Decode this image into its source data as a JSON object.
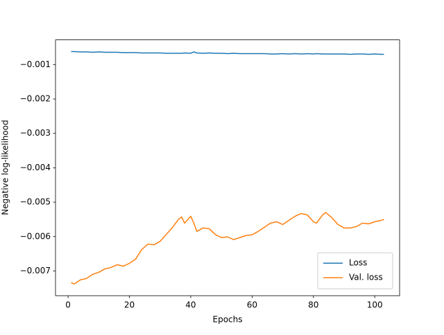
{
  "chart_data": {
    "type": "line",
    "xlabel": "Epochs",
    "ylabel": "Negative log-likelihood",
    "x": [
      1,
      2,
      4,
      6,
      8,
      10,
      12,
      14,
      16,
      18,
      20,
      22,
      24,
      26,
      28,
      30,
      32,
      34,
      36,
      37,
      38,
      40,
      41,
      42,
      44,
      46,
      48,
      50,
      52,
      54,
      56,
      58,
      60,
      62,
      64,
      66,
      68,
      70,
      72,
      74,
      76,
      78,
      80,
      81,
      83,
      84,
      86,
      88,
      90,
      92,
      94,
      96,
      98,
      100,
      102,
      103
    ],
    "series": [
      {
        "name": "Loss",
        "color": "#1f77b4",
        "values": [
          -0.00062,
          -0.00062,
          -0.00063,
          -0.00063,
          -0.00064,
          -0.00063,
          -0.00064,
          -0.00064,
          -0.00064,
          -0.00065,
          -0.00065,
          -0.00065,
          -0.00066,
          -0.00066,
          -0.00066,
          -0.00066,
          -0.00067,
          -0.00067,
          -0.00067,
          -0.00067,
          -0.00066,
          -0.00067,
          -0.00063,
          -0.00066,
          -0.00067,
          -0.00066,
          -0.00067,
          -0.00067,
          -0.00068,
          -0.00067,
          -0.00068,
          -0.00068,
          -0.00068,
          -0.00068,
          -0.00068,
          -0.00069,
          -0.00069,
          -0.00068,
          -0.00069,
          -0.00068,
          -0.00069,
          -0.00068,
          -0.00069,
          -0.00068,
          -0.00069,
          -0.00069,
          -0.00069,
          -0.00069,
          -0.00069,
          -0.0007,
          -0.00069,
          -0.00069,
          -0.0007,
          -0.00069,
          -0.0007,
          -0.0007
        ]
      },
      {
        "name": "Val. loss",
        "color": "#ff7f0e",
        "values": [
          -0.00734,
          -0.00738,
          -0.00726,
          -0.00722,
          -0.0071,
          -0.00704,
          -0.00694,
          -0.0069,
          -0.00682,
          -0.00686,
          -0.00678,
          -0.00666,
          -0.00638,
          -0.00622,
          -0.00624,
          -0.00614,
          -0.00594,
          -0.00574,
          -0.0055,
          -0.00543,
          -0.00561,
          -0.00541,
          -0.00561,
          -0.00585,
          -0.00575,
          -0.00577,
          -0.00594,
          -0.00603,
          -0.00601,
          -0.00609,
          -0.00603,
          -0.00597,
          -0.00595,
          -0.00585,
          -0.00573,
          -0.00561,
          -0.00557,
          -0.00565,
          -0.00553,
          -0.00541,
          -0.00533,
          -0.00537,
          -0.00557,
          -0.00561,
          -0.00537,
          -0.0053,
          -0.00545,
          -0.00565,
          -0.00575,
          -0.00575,
          -0.00571,
          -0.00561,
          -0.00563,
          -0.00557,
          -0.00553,
          -0.0055
        ]
      }
    ],
    "xlim": [
      -4.1,
      108.1
    ],
    "ylim": [
      -0.00772,
      -0.00028
    ],
    "xticks": [
      0,
      20,
      40,
      60,
      80,
      100
    ],
    "yticks": [
      {
        "value": -0.007,
        "label": "−0.007"
      },
      {
        "value": -0.006,
        "label": "−0.006"
      },
      {
        "value": -0.005,
        "label": "−0.005"
      },
      {
        "value": -0.004,
        "label": "−0.004"
      },
      {
        "value": -0.003,
        "label": "−0.003"
      },
      {
        "value": -0.002,
        "label": "−0.002"
      },
      {
        "value": -0.001,
        "label": "−0.001"
      }
    ],
    "legend": "lower right",
    "grid": false
  }
}
